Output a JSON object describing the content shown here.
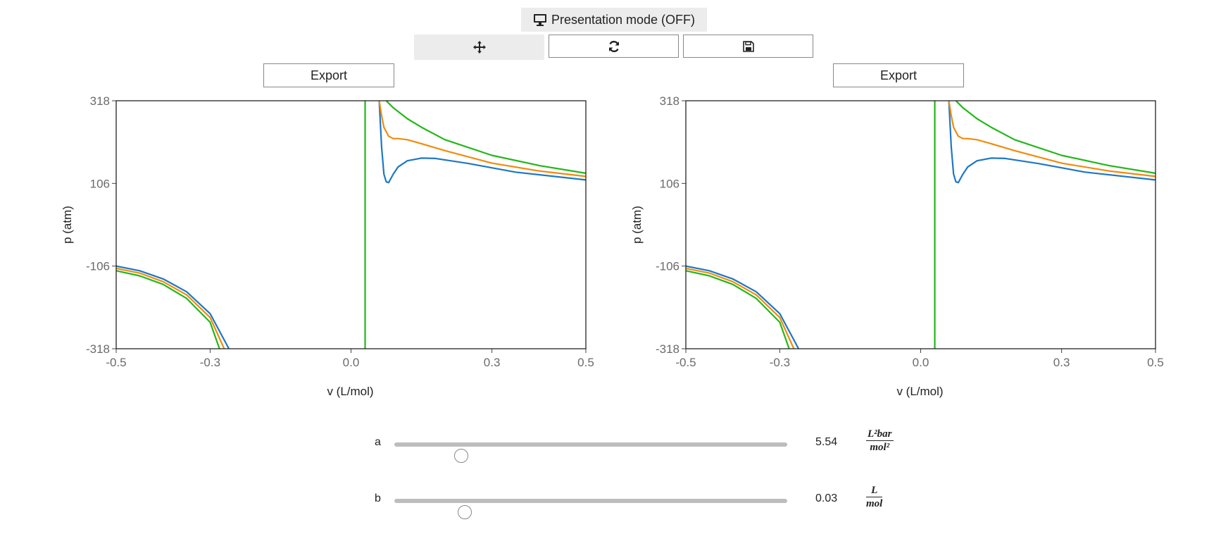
{
  "toolbar": {
    "presentation_label": "Presentation mode (OFF)",
    "presentation_icon": "monitor-icon",
    "tools": [
      {
        "name": "pan",
        "icon": "move-arrows-icon",
        "active": true
      },
      {
        "name": "reset",
        "icon": "refresh-icon",
        "active": false
      },
      {
        "name": "save",
        "icon": "floppy-disk-icon",
        "active": false
      }
    ]
  },
  "export_label": "Export",
  "chart_data": [
    {
      "type": "line",
      "xlabel": "v (L/mol)",
      "ylabel": "p (atm)",
      "xlim": [
        -0.5,
        0.5
      ],
      "ylim": [
        -318,
        318
      ],
      "xticks": [
        "-0.5",
        "-0.3",
        "0.0",
        "0.3",
        "0.5"
      ],
      "yticks": [
        "318",
        "106",
        "-106",
        "-318"
      ],
      "vertical_line": {
        "x": 0.03,
        "color": "#22b71a"
      },
      "series": [
        {
          "color": "#1f77c4",
          "points": [
            [
              -0.5,
              -106
            ],
            [
              -0.45,
              -118
            ],
            [
              -0.4,
              -139
            ],
            [
              -0.35,
              -172
            ],
            [
              -0.3,
              -228
            ],
            [
              -0.26,
              -318
            ],
            [
              0.06,
              318
            ],
            [
              0.065,
              200
            ],
            [
              0.07,
              130
            ],
            [
              0.075,
              110
            ],
            [
              0.08,
              108
            ],
            [
              0.09,
              130
            ],
            [
              0.1,
              148
            ],
            [
              0.12,
              164
            ],
            [
              0.15,
              171
            ],
            [
              0.18,
              170
            ],
            [
              0.25,
              157
            ],
            [
              0.35,
              135
            ],
            [
              0.5,
              115
            ]
          ]
        },
        {
          "color": "#f28b0c",
          "points": [
            [
              -0.5,
              -112
            ],
            [
              -0.45,
              -124
            ],
            [
              -0.4,
              -146
            ],
            [
              -0.35,
              -180
            ],
            [
              -0.3,
              -238
            ],
            [
              -0.27,
              -318
            ],
            [
              0.06,
              318
            ],
            [
              0.065,
              280
            ],
            [
              0.07,
              250
            ],
            [
              0.08,
              227
            ],
            [
              0.09,
              221
            ],
            [
              0.1,
              221
            ],
            [
              0.12,
              218
            ],
            [
              0.15,
              208
            ],
            [
              0.2,
              190
            ],
            [
              0.3,
              158
            ],
            [
              0.4,
              138
            ],
            [
              0.5,
              124
            ]
          ]
        },
        {
          "color": "#22b71a",
          "points": [
            [
              -0.5,
              -118
            ],
            [
              -0.45,
              -131
            ],
            [
              -0.4,
              -153
            ],
            [
              -0.35,
              -189
            ],
            [
              -0.3,
              -250
            ],
            [
              -0.28,
              -318
            ],
            [
              0.075,
              318
            ],
            [
              0.09,
              300
            ],
            [
              0.12,
              272
            ],
            [
              0.15,
              250
            ],
            [
              0.2,
              218
            ],
            [
              0.3,
              178
            ],
            [
              0.4,
              152
            ],
            [
              0.5,
              132
            ]
          ]
        }
      ]
    },
    {
      "type": "line",
      "xlabel": "v (L/mol)",
      "ylabel": "p (atm)",
      "xlim": [
        -0.5,
        0.5
      ],
      "ylim": [
        -318,
        318
      ],
      "xticks": [
        "-0.5",
        "-0.3",
        "0.0",
        "0.3",
        "0.5"
      ],
      "yticks": [
        "318",
        "106",
        "-106",
        "-318"
      ],
      "vertical_line": {
        "x": 0.03,
        "color": "#22b71a"
      },
      "series": [
        {
          "color": "#1f77c4",
          "points": [
            [
              -0.5,
              -106
            ],
            [
              -0.45,
              -118
            ],
            [
              -0.4,
              -139
            ],
            [
              -0.35,
              -172
            ],
            [
              -0.3,
              -228
            ],
            [
              -0.26,
              -318
            ],
            [
              0.06,
              318
            ],
            [
              0.065,
              200
            ],
            [
              0.07,
              130
            ],
            [
              0.075,
              110
            ],
            [
              0.08,
              108
            ],
            [
              0.09,
              130
            ],
            [
              0.1,
              148
            ],
            [
              0.12,
              164
            ],
            [
              0.15,
              171
            ],
            [
              0.18,
              170
            ],
            [
              0.25,
              157
            ],
            [
              0.35,
              135
            ],
            [
              0.5,
              115
            ]
          ]
        },
        {
          "color": "#f28b0c",
          "points": [
            [
              -0.5,
              -112
            ],
            [
              -0.45,
              -124
            ],
            [
              -0.4,
              -146
            ],
            [
              -0.35,
              -180
            ],
            [
              -0.3,
              -238
            ],
            [
              -0.27,
              -318
            ],
            [
              0.06,
              318
            ],
            [
              0.065,
              280
            ],
            [
              0.07,
              250
            ],
            [
              0.08,
              227
            ],
            [
              0.09,
              221
            ],
            [
              0.1,
              221
            ],
            [
              0.12,
              218
            ],
            [
              0.15,
              208
            ],
            [
              0.2,
              190
            ],
            [
              0.3,
              158
            ],
            [
              0.4,
              138
            ],
            [
              0.5,
              124
            ]
          ]
        },
        {
          "color": "#22b71a",
          "points": [
            [
              -0.5,
              -118
            ],
            [
              -0.45,
              -131
            ],
            [
              -0.4,
              -153
            ],
            [
              -0.35,
              -189
            ],
            [
              -0.3,
              -250
            ],
            [
              -0.28,
              -318
            ],
            [
              0.075,
              318
            ],
            [
              0.09,
              300
            ],
            [
              0.12,
              272
            ],
            [
              0.15,
              250
            ],
            [
              0.2,
              218
            ],
            [
              0.3,
              178
            ],
            [
              0.4,
              152
            ],
            [
              0.5,
              132
            ]
          ]
        }
      ]
    }
  ],
  "sliders": [
    {
      "name": "a",
      "value": "5.54",
      "position": 0.17,
      "unit_num": "L²bar",
      "unit_den": "mol²"
    },
    {
      "name": "b",
      "value": "0.03",
      "position": 0.18,
      "unit_num": "L",
      "unit_den": "mol"
    }
  ]
}
